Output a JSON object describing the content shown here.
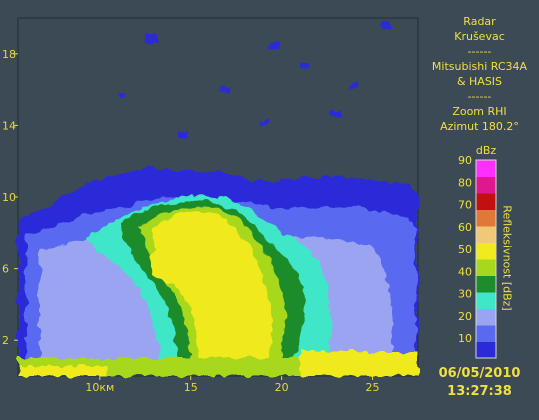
{
  "info": {
    "lines": [
      "Radar",
      "Kruševac",
      "------",
      "Mitsubishi RC34A",
      "& HASIS",
      "------",
      "Zoom RHI",
      "Azimut 180.2°"
    ]
  },
  "legend": {
    "unit": "dBz",
    "side_label": "Refleksivnost [dBz]",
    "levels": [
      10,
      20,
      30,
      40,
      50,
      60,
      70,
      80,
      90
    ],
    "colors": [
      "#2a2ad8",
      "#5a6af0",
      "#9aa4f0",
      "#40e6c8",
      "#1e8c2a",
      "#a8d81e",
      "#f0ea1e",
      "#f0c878",
      "#e07838",
      "#c01010",
      "#e01890",
      "#ff30ff"
    ]
  },
  "footer": {
    "date": "06/05/2010",
    "time": "13:27:38"
  },
  "chart_data": {
    "type": "heatmap",
    "title": "",
    "xlabel": "",
    "ylabel": "",
    "xlim": [
      5.5,
      27.5
    ],
    "ylim": [
      0,
      20
    ],
    "x_ticks": [
      {
        "value": 10,
        "label": "10км"
      },
      {
        "value": 15,
        "label": "15"
      },
      {
        "value": 20,
        "label": "20"
      },
      {
        "value": 25,
        "label": "25"
      }
    ],
    "y_ticks": [
      {
        "value": 2,
        "label": "2"
      },
      {
        "value": 6,
        "label": "6"
      },
      {
        "value": 10,
        "label": "10"
      },
      {
        "value": 14,
        "label": "14"
      },
      {
        "value": 18,
        "label": "18"
      }
    ],
    "background_color": "#3b4a54",
    "grid": false
  }
}
